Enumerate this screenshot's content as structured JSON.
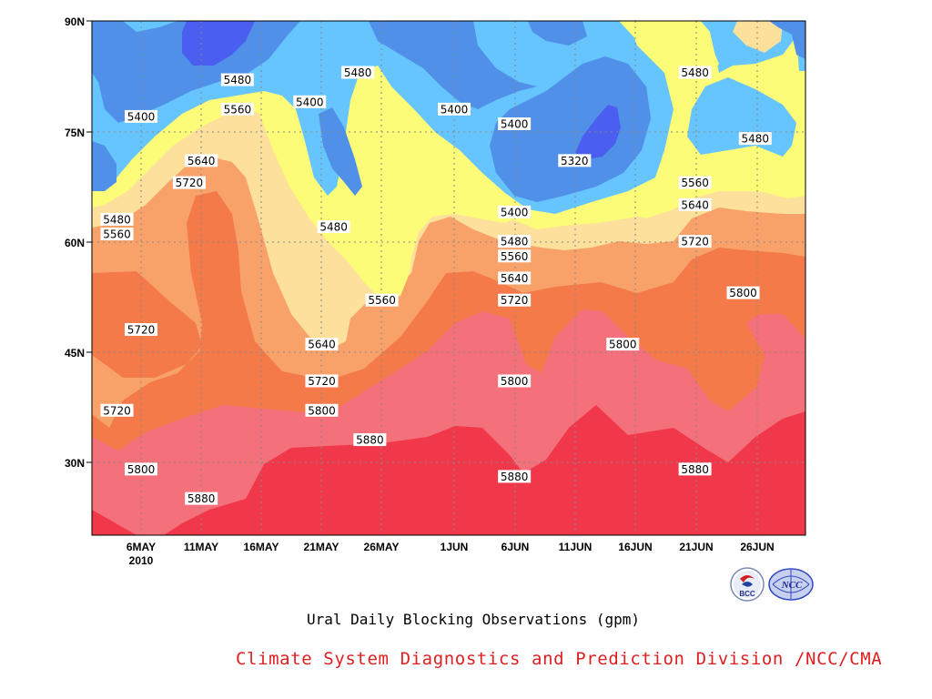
{
  "chart_data": {
    "type": "contour",
    "title": "Ural Daily Blocking Observations (gpm)",
    "xlabel": "",
    "ylabel": "",
    "x_ticks": [
      "6MAY",
      "11MAY",
      "16MAY",
      "21MAY",
      "26MAY",
      "1JUN",
      "6JUN",
      "11JUN",
      "16JUN",
      "21JUN",
      "26JUN"
    ],
    "x_year_label": "2010",
    "y_ticks": [
      "30N",
      "45N",
      "60N",
      "75N",
      "90N"
    ],
    "y_tick_values": [
      30,
      45,
      60,
      75,
      90
    ],
    "ylim": [
      20,
      90
    ],
    "levels": [
      5320,
      5400,
      5480,
      5560,
      5640,
      5720,
      5800,
      5880
    ],
    "contour_labels": [
      {
        "value": "5400",
        "day": "6MAY",
        "lat": 77
      },
      {
        "value": "5480",
        "day": "14MAY",
        "lat": 82
      },
      {
        "value": "5560",
        "day": "14MAY",
        "lat": 78
      },
      {
        "value": "5400",
        "day": "20MAY",
        "lat": 79
      },
      {
        "value": "5480",
        "day": "24MAY",
        "lat": 83
      },
      {
        "value": "5400",
        "day": "1JUN",
        "lat": 78
      },
      {
        "value": "5400",
        "day": "6JUN",
        "lat": 76
      },
      {
        "value": "5320",
        "day": "11JUN",
        "lat": 71
      },
      {
        "value": "5480",
        "day": "21JUN",
        "lat": 83
      },
      {
        "value": "5480",
        "day": "26JUN",
        "lat": 74
      },
      {
        "value": "5640",
        "day": "11MAY",
        "lat": 71
      },
      {
        "value": "5720",
        "day": "10MAY",
        "lat": 68
      },
      {
        "value": "5480",
        "day": "4MAY",
        "lat": 63
      },
      {
        "value": "5560",
        "day": "4MAY",
        "lat": 61
      },
      {
        "value": "5480",
        "day": "22MAY",
        "lat": 62
      },
      {
        "value": "5400",
        "day": "6JUN",
        "lat": 64
      },
      {
        "value": "5480",
        "day": "6JUN",
        "lat": 60
      },
      {
        "value": "5560",
        "day": "6JUN",
        "lat": 58
      },
      {
        "value": "5640",
        "day": "6JUN",
        "lat": 55
      },
      {
        "value": "5720",
        "day": "6JUN",
        "lat": 52
      },
      {
        "value": "5560",
        "day": "21JUN",
        "lat": 68
      },
      {
        "value": "5640",
        "day": "21JUN",
        "lat": 65
      },
      {
        "value": "5720",
        "day": "21JUN",
        "lat": 60
      },
      {
        "value": "5800",
        "day": "25JUN",
        "lat": 53
      },
      {
        "value": "5560",
        "day": "26MAY",
        "lat": 52
      },
      {
        "value": "5720",
        "day": "6MAY",
        "lat": 48
      },
      {
        "value": "5640",
        "day": "21MAY",
        "lat": 46
      },
      {
        "value": "5800",
        "day": "15JUN",
        "lat": 46
      },
      {
        "value": "5720",
        "day": "21MAY",
        "lat": 41
      },
      {
        "value": "5800",
        "day": "6JUN",
        "lat": 41
      },
      {
        "value": "5720",
        "day": "4MAY",
        "lat": 37
      },
      {
        "value": "5800",
        "day": "21MAY",
        "lat": 37
      },
      {
        "value": "5880",
        "day": "25MAY",
        "lat": 33
      },
      {
        "value": "5800",
        "day": "6MAY",
        "lat": 29
      },
      {
        "value": "5880",
        "day": "6JUN",
        "lat": 28
      },
      {
        "value": "5880",
        "day": "21JUN",
        "lat": 29
      },
      {
        "value": "5880",
        "day": "11MAY",
        "lat": 25
      }
    ],
    "colors": {
      "<5320": "#3030a8",
      "5320-5400": "#4a5ef0",
      "5400-5480": "#5090e8",
      "5480-5560": "#66c4ff",
      "5560-5640": "#fcfc78",
      "5640-5720": "#fce09c",
      "5720-5800": "#f8a26a",
      "5800-5880": "#f47a4a",
      "5880-5960": "#f4707a",
      ">5960": "#f0384a"
    },
    "grid": true
  },
  "credit": {
    "text": "Climate System Diagnostics and Prediction Division /NCC/CMA",
    "color": "#e02020"
  },
  "logos": [
    {
      "icon": "bcc-logo",
      "text": "BCC"
    },
    {
      "icon": "ncc-logo",
      "text": "NCC"
    }
  ]
}
